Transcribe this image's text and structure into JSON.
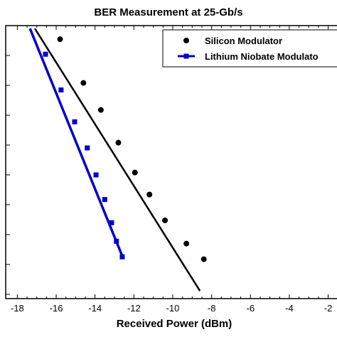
{
  "chart_data": {
    "type": "scatter",
    "title": "BER Measurement at 25-Gb/s",
    "xlabel": "Received Power (dBm)",
    "ylabel": "",
    "xlim": [
      -18.6,
      -1.4
    ],
    "x_ticks": [
      -18,
      -16,
      -14,
      -12,
      -10,
      -8,
      -6,
      -4,
      -2
    ],
    "y_scale": "log",
    "ylim": [
      1e-12,
      0.001
    ],
    "grid": false,
    "legend_position": "top-right",
    "series": [
      {
        "name": "Silicon Modulator",
        "color": "#000000",
        "marker": "circle",
        "points": [
          {
            "x": -15.8,
            "y": 0.00035
          },
          {
            "x": -14.6,
            "y": 1.2e-05
          },
          {
            "x": -13.7,
            "y": 1.5e-06
          },
          {
            "x": -12.8,
            "y": 1.2e-07
          },
          {
            "x": -11.95,
            "y": 1.2e-08
          },
          {
            "x": -11.2,
            "y": 2.2e-09
          },
          {
            "x": -10.4,
            "y": 3e-10
          },
          {
            "x": -9.3,
            "y": 5e-11
          },
          {
            "x": -8.4,
            "y": 1.5e-11
          }
        ],
        "fit_line": [
          {
            "x": -17.1,
            "y": 0.0008
          },
          {
            "x": -8.6,
            "y": 1.3e-12
          }
        ]
      },
      {
        "name": "Lithium Niobate Modulato",
        "color": "#0000cc",
        "marker": "square",
        "points": [
          {
            "x": -16.55,
            "y": 0.00011
          },
          {
            "x": -15.75,
            "y": 7e-06
          },
          {
            "x": -15.05,
            "y": 6e-07
          },
          {
            "x": -14.4,
            "y": 8e-08
          },
          {
            "x": -13.95,
            "y": 1e-08
          },
          {
            "x": -13.5,
            "y": 1.5e-09
          },
          {
            "x": -13.15,
            "y": 2.5e-10
          },
          {
            "x": -12.9,
            "y": 6e-11
          },
          {
            "x": -12.6,
            "y": 1.8e-11
          }
        ],
        "fit_line": [
          {
            "x": -17.35,
            "y": 0.0008
          },
          {
            "x": -12.55,
            "y": 1.6e-11
          }
        ]
      }
    ]
  }
}
